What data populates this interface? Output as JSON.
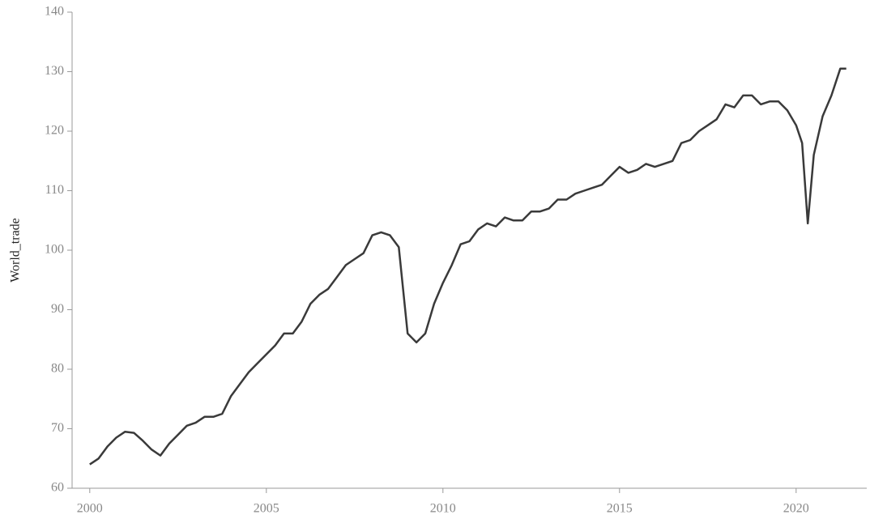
{
  "chart_data": {
    "type": "line",
    "y_label": "World_trade",
    "x": [
      2000,
      2000.25,
      2000.5,
      2000.75,
      2001,
      2001.25,
      2001.5,
      2001.75,
      2002,
      2002.25,
      2002.5,
      2002.75,
      2003,
      2003.25,
      2003.5,
      2003.75,
      2004,
      2004.25,
      2004.5,
      2004.75,
      2005,
      2005.25,
      2005.5,
      2005.75,
      2006,
      2006.25,
      2006.5,
      2006.75,
      2007,
      2007.25,
      2007.5,
      2007.75,
      2008,
      2008.25,
      2008.5,
      2008.75,
      2009,
      2009.25,
      2009.5,
      2009.75,
      2010,
      2010.25,
      2010.5,
      2010.75,
      2011,
      2011.25,
      2011.5,
      2011.75,
      2012,
      2012.25,
      2012.5,
      2012.75,
      2013,
      2013.25,
      2013.5,
      2013.75,
      2014,
      2014.25,
      2014.5,
      2014.75,
      2015,
      2015.25,
      2015.5,
      2015.75,
      2016,
      2016.25,
      2016.5,
      2016.75,
      2017,
      2017.25,
      2017.5,
      2017.75,
      2018,
      2018.25,
      2018.5,
      2018.75,
      2019,
      2019.25,
      2019.5,
      2019.75,
      2020,
      2020.17,
      2020.33,
      2020.5,
      2020.75,
      2021,
      2021.25,
      2021.42
    ],
    "series": [
      {
        "name": "World_trade",
        "color": "#3a3a3a",
        "values": [
          64,
          65,
          67,
          68.5,
          69.5,
          69.3,
          68,
          66.5,
          65.5,
          67.5,
          69,
          70.5,
          71,
          72,
          72,
          72.5,
          75.5,
          77.5,
          79.5,
          81,
          82.5,
          84,
          86,
          86,
          88,
          91,
          92.5,
          93.5,
          95.5,
          97.5,
          98.5,
          99.5,
          102.5,
          103,
          102.5,
          100.5,
          86,
          84.5,
          86,
          91,
          94.5,
          97.5,
          101,
          101.5,
          103.5,
          104.5,
          104,
          105.5,
          105,
          105,
          106.5,
          106.5,
          107,
          108.5,
          108.5,
          109.5,
          110,
          110.5,
          111,
          112.5,
          114,
          113,
          113.5,
          114.5,
          114,
          114.5,
          115,
          118,
          118.5,
          120,
          121,
          122,
          124.5,
          124,
          126,
          126,
          124.5,
          125,
          125,
          123.5,
          121,
          118,
          104.5,
          116,
          122.5,
          126,
          130.5,
          130.5
        ]
      }
    ],
    "xlim": [
      1999.5,
      2022
    ],
    "xticks": [
      2000,
      2005,
      2010,
      2015,
      2020
    ],
    "ylim": [
      60,
      140
    ],
    "yticks": [
      60,
      70,
      80,
      90,
      100,
      110,
      120,
      130,
      140
    ]
  }
}
